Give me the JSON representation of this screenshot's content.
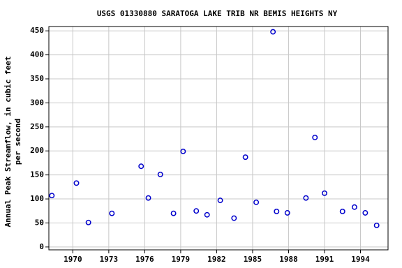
{
  "chart_data": {
    "type": "scatter",
    "title": "USGS 01330880 SARATOGA LAKE TRIB NR BEMIS HEIGHTS NY",
    "y_label": [
      "Annual Peak Streamflow, in cubic feet",
      "per second"
    ],
    "x": [
      1968.25,
      1970.3,
      1971.3,
      1973.26,
      1975.7,
      1976.3,
      1977.3,
      1978.4,
      1979.2,
      1980.3,
      1981.2,
      1982.3,
      1983.45,
      1984.4,
      1985.3,
      1986.7,
      1987.0,
      1987.9,
      1989.45,
      1990.2,
      1991.0,
      1992.5,
      1993.5,
      1994.4,
      1995.35
    ],
    "series": [
      {
        "name": "Annual peak streamflow",
        "color": "#0000cc",
        "values": [
          107,
          133,
          51,
          70,
          168,
          102,
          151,
          70,
          199,
          75,
          67,
          97,
          60,
          187,
          93,
          448,
          74,
          71,
          102,
          228,
          112,
          74,
          83,
          71,
          45
        ]
      }
    ],
    "xlim": [
      1968,
      1996.3
    ],
    "xticks": [
      1970,
      1973,
      1976,
      1979,
      1982,
      1985,
      1988,
      1991,
      1994
    ],
    "ylim": [
      -6,
      459
    ],
    "yticks": [
      0,
      50,
      100,
      150,
      200,
      250,
      300,
      350,
      400,
      450
    ],
    "grid": true
  }
}
